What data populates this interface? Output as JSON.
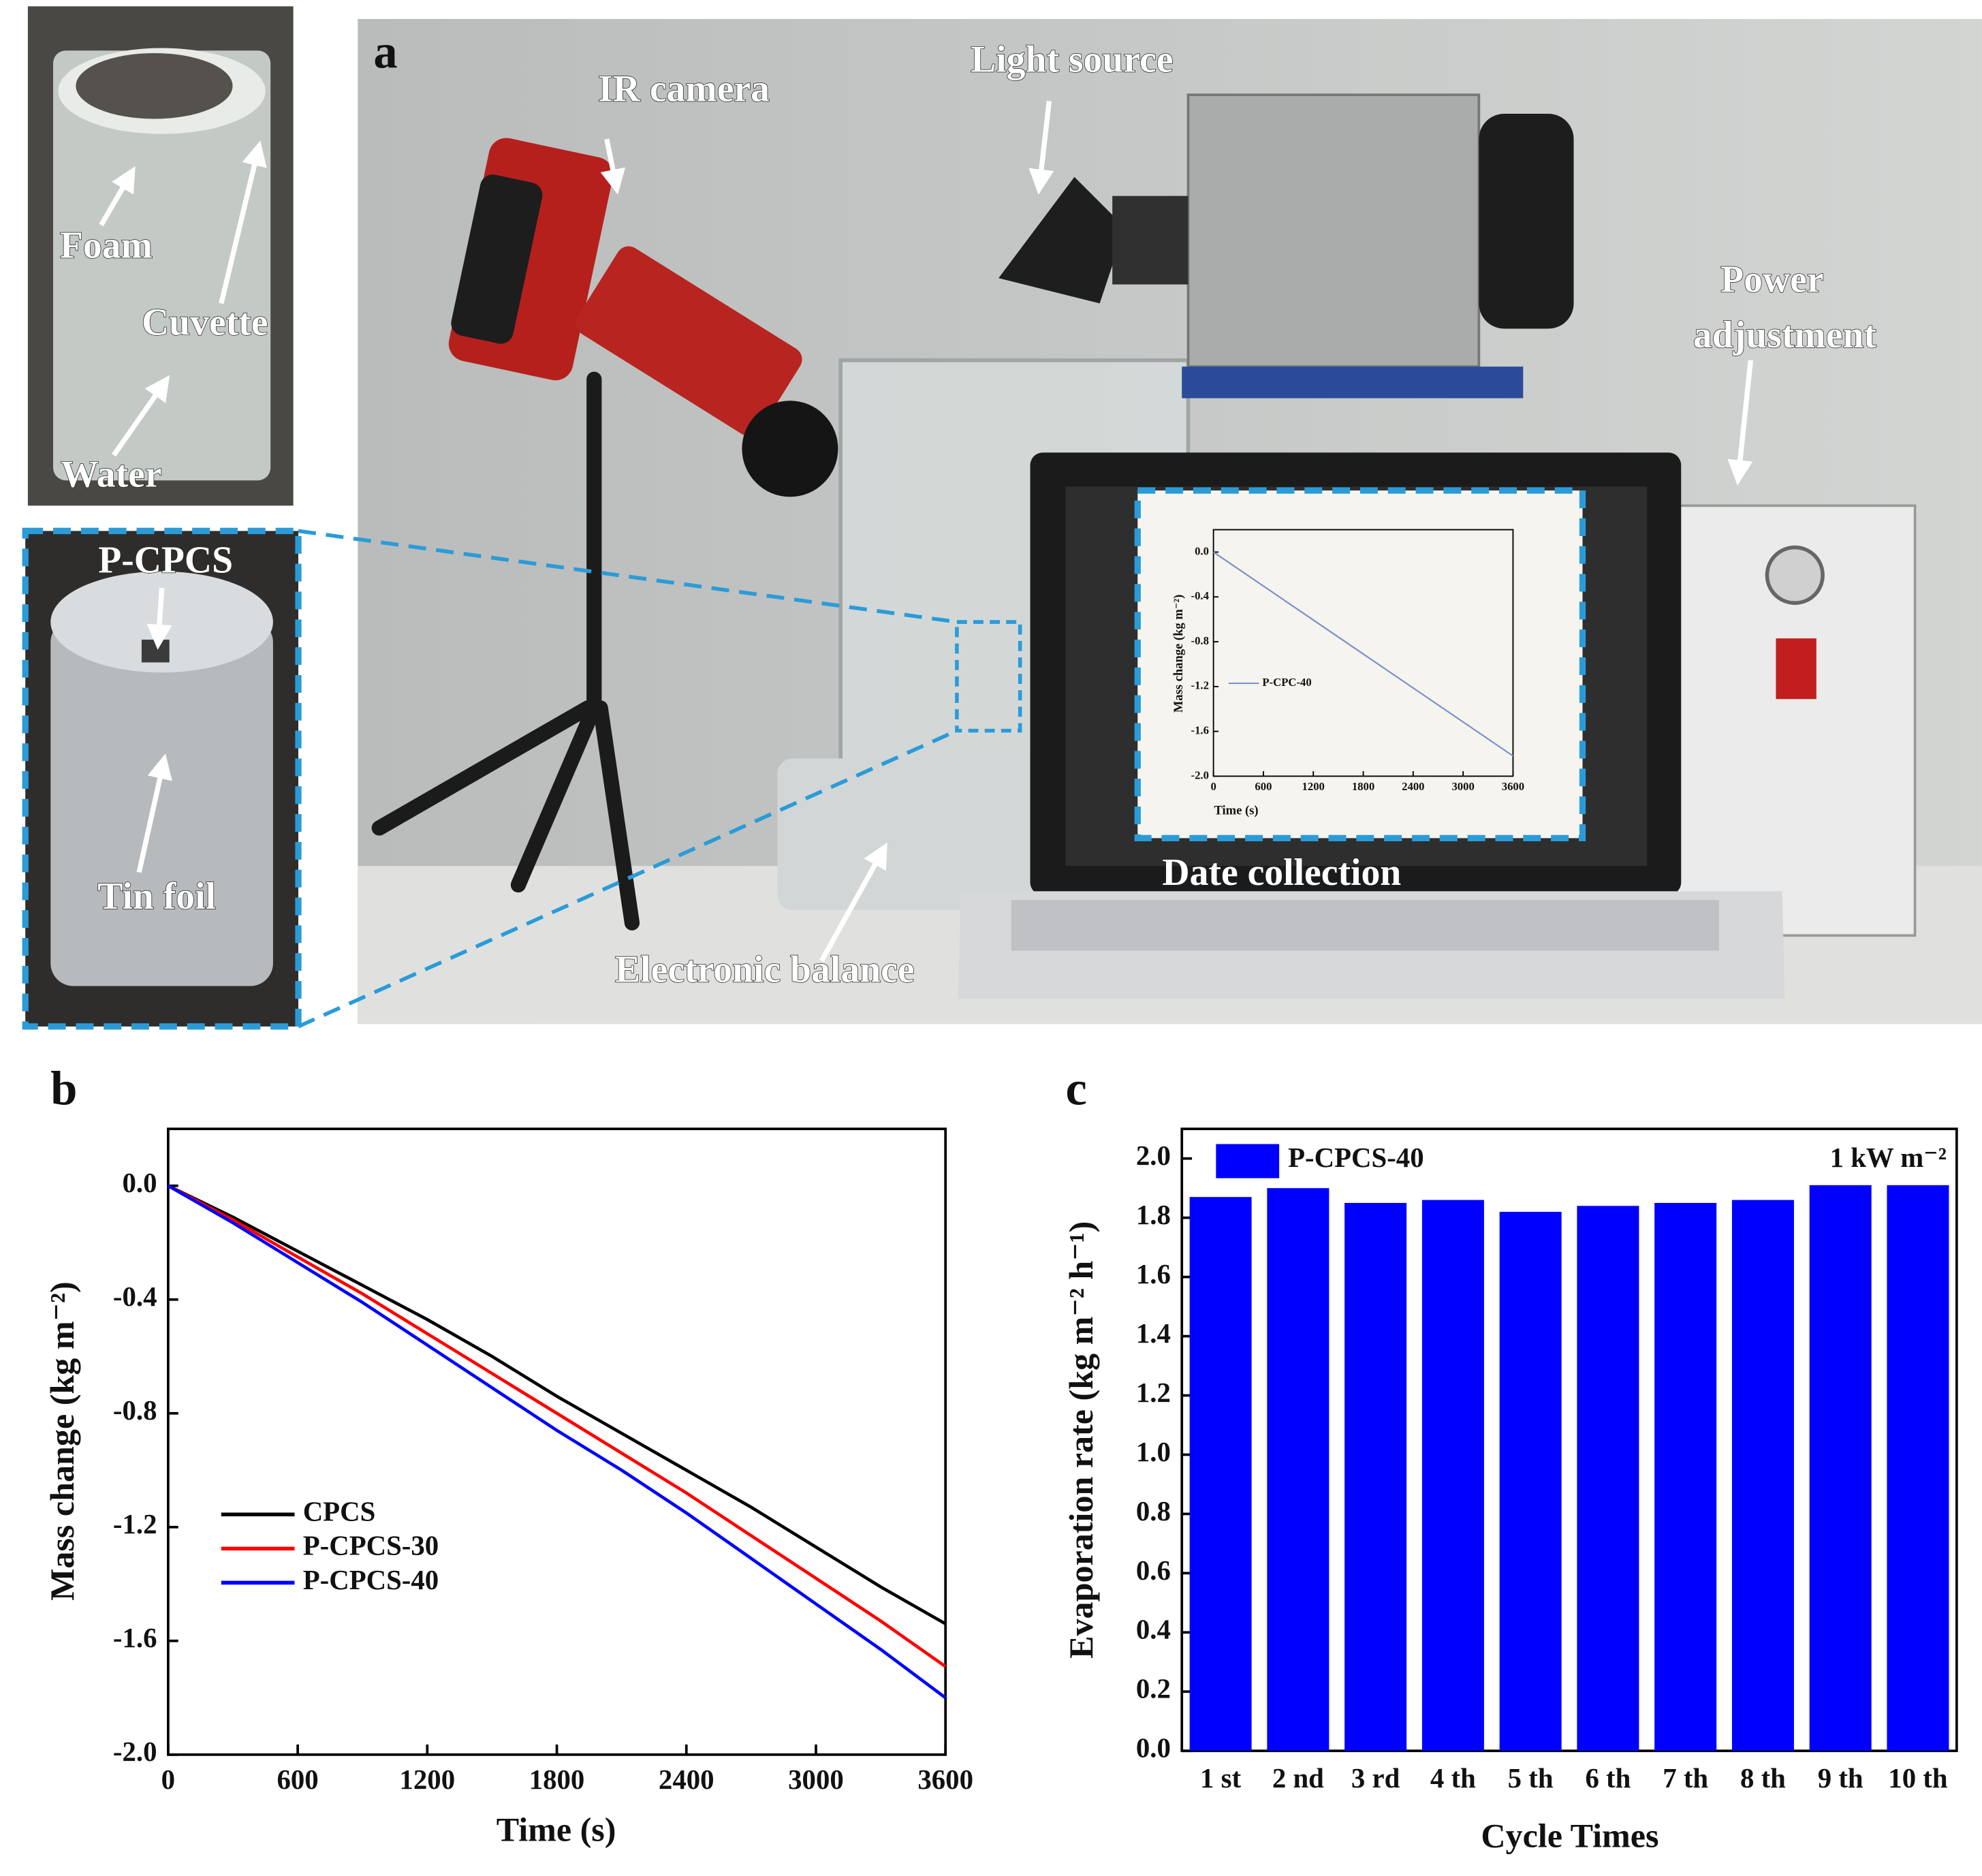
{
  "photo": {
    "panel_label": "a",
    "annotations": [
      "Foam",
      "Cuvette",
      "Water",
      "P-CPCS",
      "Tin foil",
      "IR camera",
      "Light source",
      "Power",
      "adjustment",
      "Date collection",
      "Electronic balance"
    ]
  },
  "chart_data": [
    {
      "type": "line",
      "panel_label": "b",
      "x_label": "Time (s)",
      "y_label": "Mass change (kg m⁻²)",
      "x": [
        0,
        300,
        600,
        900,
        1200,
        1500,
        1800,
        2100,
        2400,
        2700,
        3000,
        3300,
        3600
      ],
      "series": [
        {
          "name": "CPCS",
          "color": "#000000",
          "values": [
            0,
            -0.11,
            -0.23,
            -0.35,
            -0.47,
            -0.6,
            -0.74,
            -0.87,
            -1.0,
            -1.13,
            -1.27,
            -1.41,
            -1.54
          ]
        },
        {
          "name": "P-CPCS-30",
          "color": "#ff0000",
          "values": [
            0,
            -0.12,
            -0.25,
            -0.38,
            -0.52,
            -0.66,
            -0.8,
            -0.94,
            -1.08,
            -1.23,
            -1.38,
            -1.53,
            -1.69
          ]
        },
        {
          "name": "P-CPCS-40",
          "color": "#0000ff",
          "values": [
            0,
            -0.13,
            -0.27,
            -0.41,
            -0.56,
            -0.71,
            -0.86,
            -1.0,
            -1.15,
            -1.31,
            -1.47,
            -1.63,
            -1.8
          ]
        }
      ],
      "xlim": [
        0,
        3600
      ],
      "xticks": [
        0,
        600,
        1200,
        1800,
        2400,
        3000,
        3600
      ],
      "ylim": [
        -2.0,
        0.2
      ],
      "yticks": [
        {
          "value": 0,
          "label": "0.0"
        },
        -0.4,
        -0.8,
        -1.2,
        -1.6,
        {
          "value": -2,
          "label": "-2.0"
        }
      ],
      "legend": "lower left"
    },
    {
      "type": "bar",
      "panel_label": "c",
      "x_label": "Cycle Times",
      "y_label": "Evaporation rate (kg m⁻² h⁻¹)",
      "annotation": "1 kW m⁻²",
      "categories": [
        "1 st",
        "2 nd",
        "3 rd",
        "4 th",
        "5 th",
        "6 th",
        "7 th",
        "8 th",
        "9 th",
        "10 th"
      ],
      "series": [
        {
          "name": "P-CPCS-40",
          "color": "#0000ff",
          "values": [
            1.87,
            1.9,
            1.85,
            1.86,
            1.82,
            1.84,
            1.85,
            1.86,
            1.91,
            1.91
          ]
        }
      ],
      "ylim": [
        0,
        2.1
      ],
      "yticks": [
        {
          "value": 0,
          "label": "0.0"
        },
        0.2,
        0.4,
        0.6,
        0.8,
        {
          "value": 1,
          "label": "1.0"
        },
        1.2,
        1.4,
        1.6,
        1.8,
        {
          "value": 2,
          "label": "2.0"
        }
      ],
      "legend": "upper left"
    },
    {
      "type": "line",
      "x_label": "Time (s)",
      "y_label": "Mass change (kg m⁻²)",
      "x": [
        0,
        3600
      ],
      "series": [
        {
          "name": "P-CPC-40",
          "color": "#7d93c9",
          "values": [
            0,
            -1.82
          ]
        }
      ],
      "xlim": [
        0,
        3600
      ],
      "xticks": [
        0,
        600,
        1200,
        1800,
        2400,
        3000,
        3600
      ],
      "ylim": [
        -2.0,
        0.2
      ],
      "yticks": [
        {
          "value": 0,
          "label": "0.0"
        },
        -0.4,
        -0.8,
        -1.2,
        -1.6,
        {
          "value": -2,
          "label": "-2.0"
        }
      ],
      "legend": "center left"
    }
  ]
}
